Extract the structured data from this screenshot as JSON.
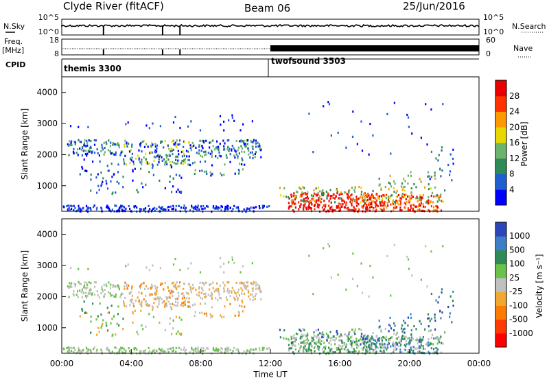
{
  "header": {
    "station": "Clyde River (fitACF)",
    "beam": "Beam 06",
    "date": "25/Jun/2016"
  },
  "left_labels": {
    "nsky": "N.Sky",
    "freq_line1": "Freq.",
    "freq_line2": "[MHz]",
    "cpid": "CPID"
  },
  "right_labels": {
    "nsearch": "N.Search",
    "nave": "Nave"
  },
  "chart_data": [
    {
      "type": "line",
      "name": "noise-panel",
      "ylabel_left": "N.Sky",
      "ylabel_right": "N.Search",
      "left_ticks": [
        "10^5",
        "10^0"
      ],
      "right_ticks": [
        "10^5",
        "10^0"
      ]
    },
    {
      "type": "line",
      "name": "frequency-nave-panel",
      "left_ticks": [
        "18",
        "8"
      ],
      "right_ticks": [
        "60",
        "0"
      ]
    },
    {
      "type": "table",
      "name": "cpid-panel",
      "segments": [
        {
          "label": "themis 3300",
          "start_hour": 0,
          "end_hour": 12
        },
        {
          "label": "twofsound 3503",
          "start_hour": 12,
          "end_hour": 24
        }
      ]
    },
    {
      "type": "heatmap",
      "name": "power",
      "ylabel": "Slant Range [km]",
      "ylim": [
        180,
        4500
      ],
      "y_ticks": [
        1000,
        2000,
        3000,
        4000
      ],
      "xlim": [
        0,
        24
      ],
      "colorbar": {
        "label": "Power [dB]",
        "ticks": [
          "4",
          "8",
          "12",
          "16",
          "20",
          "24",
          "28"
        ],
        "colors": [
          "#0000ff",
          "#1f5fd0",
          "#2e8b57",
          "#6cb46c",
          "#e6d800",
          "#ff9900",
          "#ff3300",
          "#e60000"
        ]
      }
    },
    {
      "type": "heatmap",
      "name": "velocity",
      "ylabel": "Slant Range [km]",
      "ylim": [
        180,
        4500
      ],
      "y_ticks": [
        1000,
        2000,
        3000,
        4000
      ],
      "xlim": [
        0,
        24
      ],
      "xlabel": "Time UT",
      "x_ticks": [
        "00:00",
        "04:00",
        "08:00",
        "12:00",
        "16:00",
        "20:00",
        "00:00"
      ],
      "colorbar": {
        "label": "Velocity [m s⁻¹]",
        "ticks": [
          "1000",
          "500",
          "100",
          "25",
          "-25",
          "-100",
          "-500",
          "-1000"
        ],
        "colors": [
          "#2c45b8",
          "#3d7fc6",
          "#2e8b57",
          "#6ac24a",
          "#c0c0c0",
          "#f0a830",
          "#ff7a00",
          "#ff3b00",
          "#ff0000"
        ]
      }
    }
  ]
}
